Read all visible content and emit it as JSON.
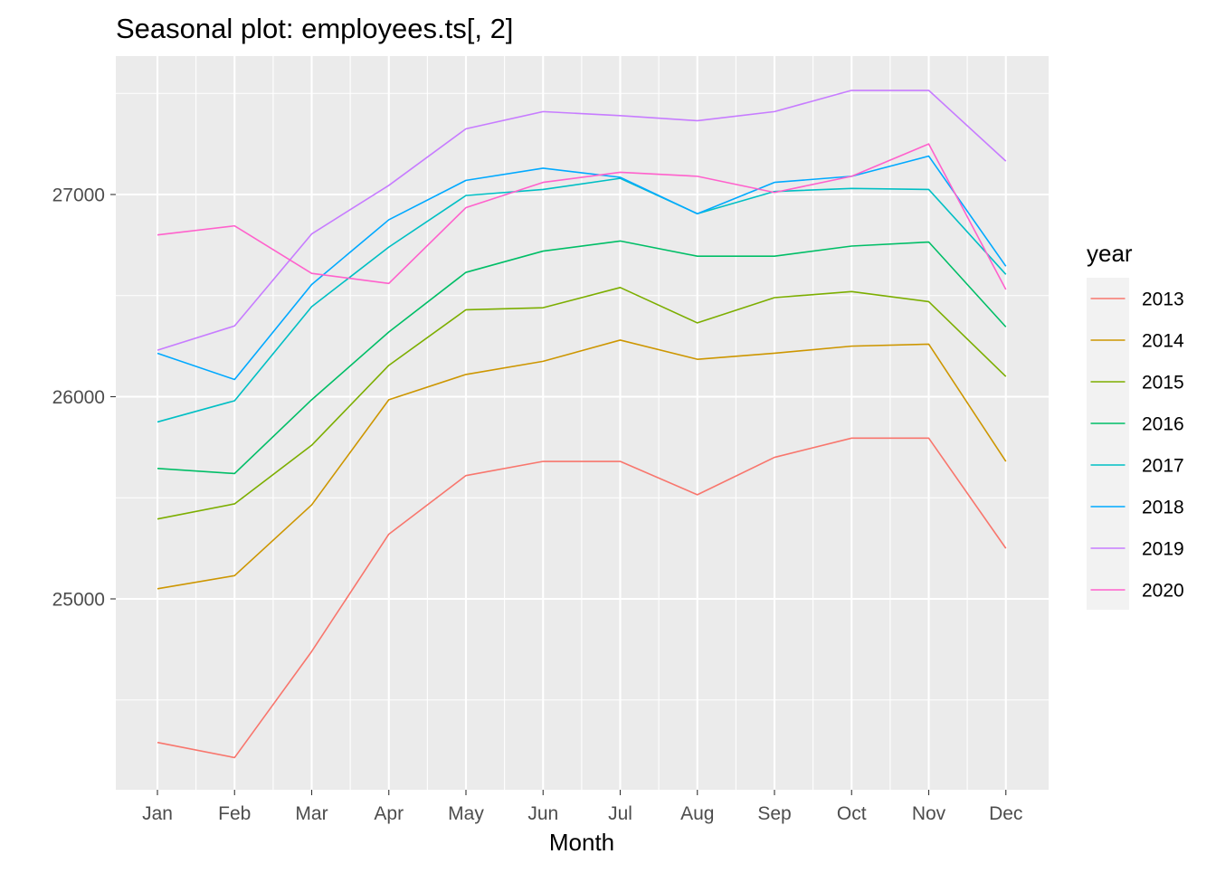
{
  "chart_data": {
    "type": "line",
    "title": "Seasonal plot: employees.ts[, 2]",
    "xlabel": "Month",
    "ylabel": "",
    "categories": [
      "Jan",
      "Feb",
      "Mar",
      "Apr",
      "May",
      "Jun",
      "Jul",
      "Aug",
      "Sep",
      "Oct",
      "Nov",
      "Dec"
    ],
    "ylim": [
      24050,
      27650
    ],
    "yticks": [
      25000,
      26000,
      27000
    ],
    "ytick_labels": [
      "25000",
      "26000",
      "27000"
    ],
    "ygrid_minor": [
      24500,
      25500,
      26500,
      27500
    ],
    "grid": true,
    "legend": {
      "title": "year",
      "placement": "right"
    },
    "colors": {
      "panel_background": "#EBEBEB",
      "legend_key_background": "#F2F2F2",
      "grid_line": "#FFFFFF"
    },
    "series": [
      {
        "name": "2013",
        "color": "#F8766D",
        "values": [
          24290,
          24215,
          24740,
          25320,
          25610,
          25680,
          25680,
          25515,
          25700,
          25795,
          25795,
          25250
        ]
      },
      {
        "name": "2014",
        "color": "#CD9600",
        "values": [
          25050,
          25115,
          25465,
          25985,
          26110,
          26175,
          26280,
          26185,
          26215,
          26250,
          26260,
          25680
        ]
      },
      {
        "name": "2015",
        "color": "#7CAE00",
        "values": [
          25395,
          25470,
          25760,
          26155,
          26430,
          26440,
          26540,
          26365,
          26490,
          26520,
          26470,
          26100
        ]
      },
      {
        "name": "2016",
        "color": "#00BE67",
        "values": [
          25645,
          25620,
          25985,
          26320,
          26615,
          26720,
          26770,
          26695,
          26695,
          26745,
          26765,
          26345
        ]
      },
      {
        "name": "2017",
        "color": "#00BFC4",
        "values": [
          25875,
          25980,
          26445,
          26740,
          26995,
          27025,
          27080,
          26905,
          27015,
          27030,
          27025,
          26605
        ]
      },
      {
        "name": "2018",
        "color": "#00A9FF",
        "values": [
          26215,
          26085,
          26555,
          26875,
          27070,
          27130,
          27085,
          26905,
          27060,
          27090,
          27190,
          26645
        ]
      },
      {
        "name": "2019",
        "color": "#C77CFF",
        "values": [
          26230,
          26350,
          26805,
          27045,
          27325,
          27410,
          27390,
          27365,
          27410,
          27515,
          27515,
          27165
        ]
      },
      {
        "name": "2020",
        "color": "#FF61CC",
        "values": [
          26800,
          26845,
          26610,
          26560,
          26935,
          27060,
          27110,
          27090,
          27010,
          27090,
          27250,
          26530
        ]
      }
    ]
  }
}
